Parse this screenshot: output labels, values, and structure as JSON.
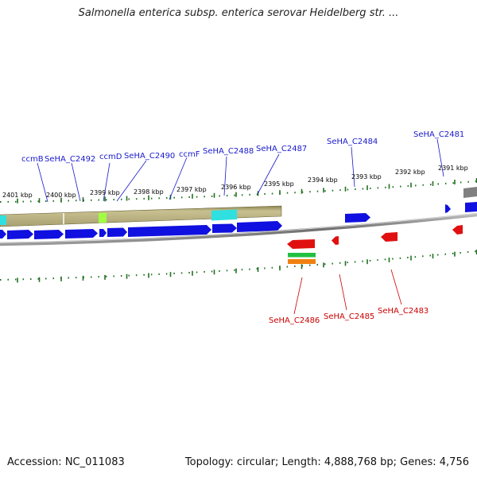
{
  "title": "Salmonella enterica subsp. enterica serovar Heidelberg str. ...",
  "footer": {
    "accession": "Accession: NC_011083",
    "summary": "Topology: circular; Length: 4,888,768 bp; Genes: 4,756"
  },
  "kbp_labels": [
    "2401 kbp",
    "2400 kbp",
    "2399 kbp",
    "2398 kbp",
    "2397 kbp",
    "2396 kbp",
    "2395 kbp",
    "2394 kbp",
    "2393 kbp",
    "2392 kbp",
    "2391 kbp"
  ],
  "forward_genes": [
    "ccmB",
    "SeHA_C2492",
    "ccmD",
    "SeHA_C2490",
    "ccmF",
    "SeHA_C2488",
    "SeHA_C2487",
    "SeHA_C2484",
    "SeHA_C2481"
  ],
  "reverse_genes": [
    "SeHA_C2486",
    "SeHA_C2485",
    "SeHA_C2483"
  ],
  "colors": {
    "forward_label": "#1a1acc",
    "reverse_label": "#cc0000",
    "cds": "#1010e0",
    "reverse_cds": "#e01010",
    "operon_band": "#b8b080",
    "cyan_feature": "#30e0e0",
    "lime_feature": "#a0ff40",
    "tick": "#207020",
    "backbone": "#808080"
  }
}
